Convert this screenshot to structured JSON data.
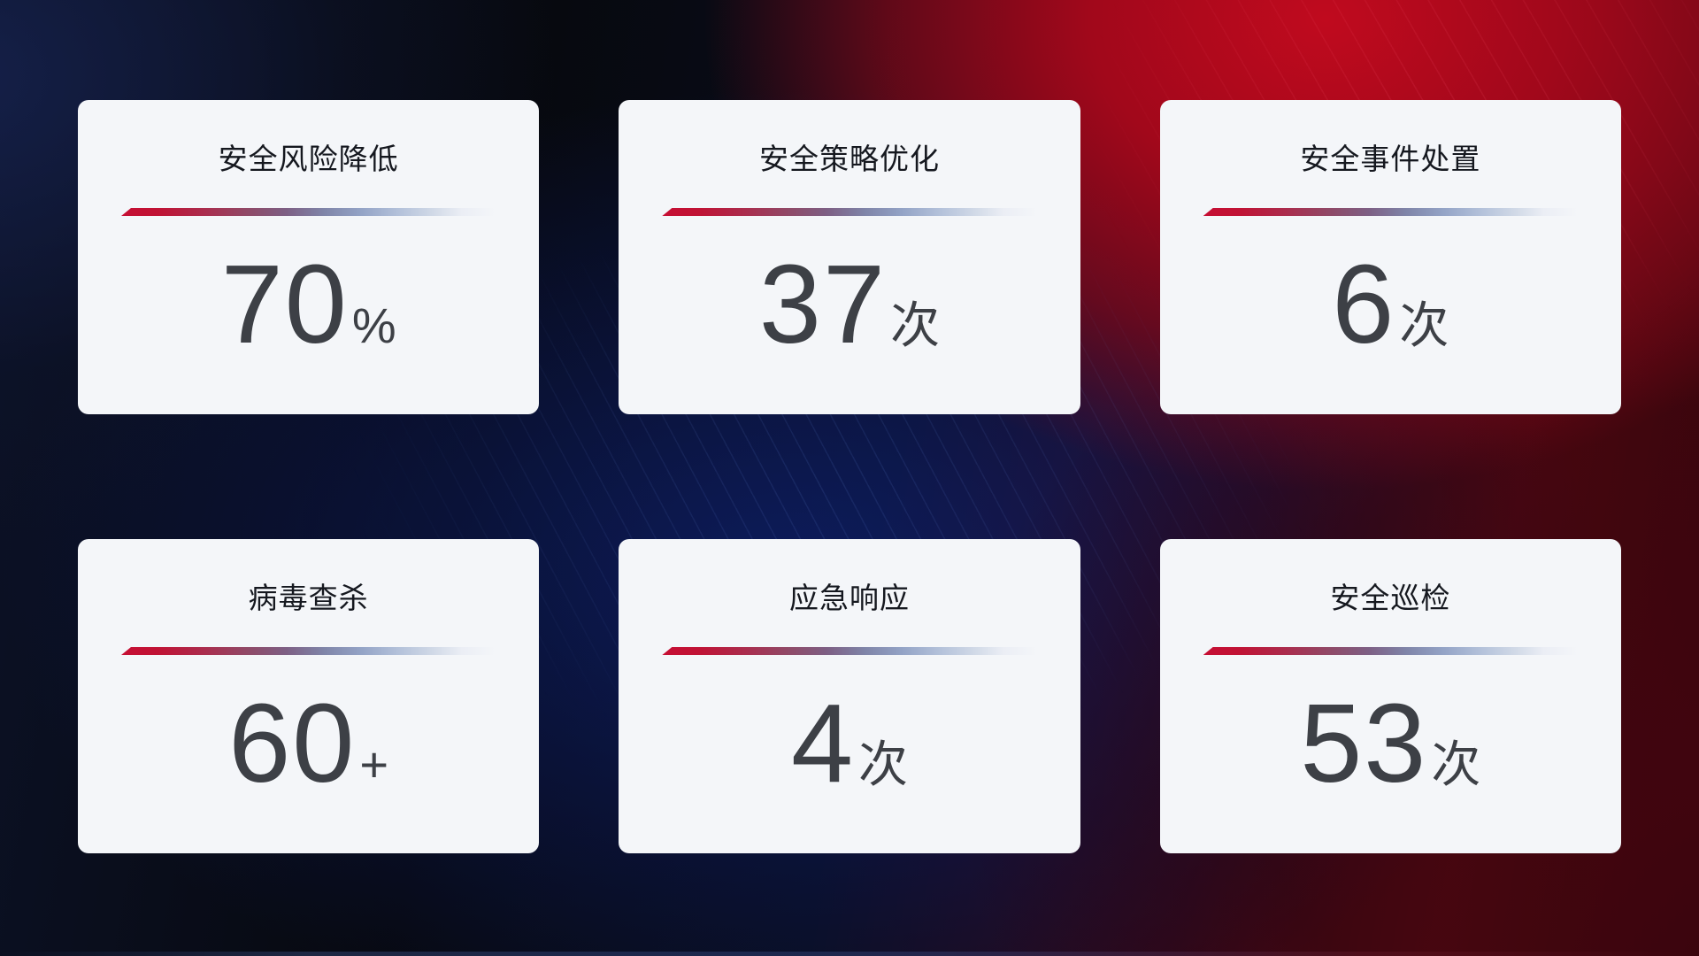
{
  "theme": {
    "card_bg": "#f4f6f9",
    "title_color": "#15181f",
    "value_color": "#3d4046",
    "line_start": "#c60e33",
    "line_end": "#e9edf4",
    "bg_red": "#c00a1e",
    "bg_blue": "#10267f",
    "bg_navy": "#101a38"
  },
  "cards": [
    {
      "title": "安全风险降低",
      "value": "70",
      "unit": "%"
    },
    {
      "title": "安全策略优化",
      "value": "37",
      "unit": "次"
    },
    {
      "title": "安全事件处置",
      "value": "6",
      "unit": "次"
    },
    {
      "title": "病毒查杀",
      "value": "60",
      "unit": "+"
    },
    {
      "title": "应急响应",
      "value": "4",
      "unit": "次"
    },
    {
      "title": "安全巡检",
      "value": "53",
      "unit": "次"
    }
  ]
}
